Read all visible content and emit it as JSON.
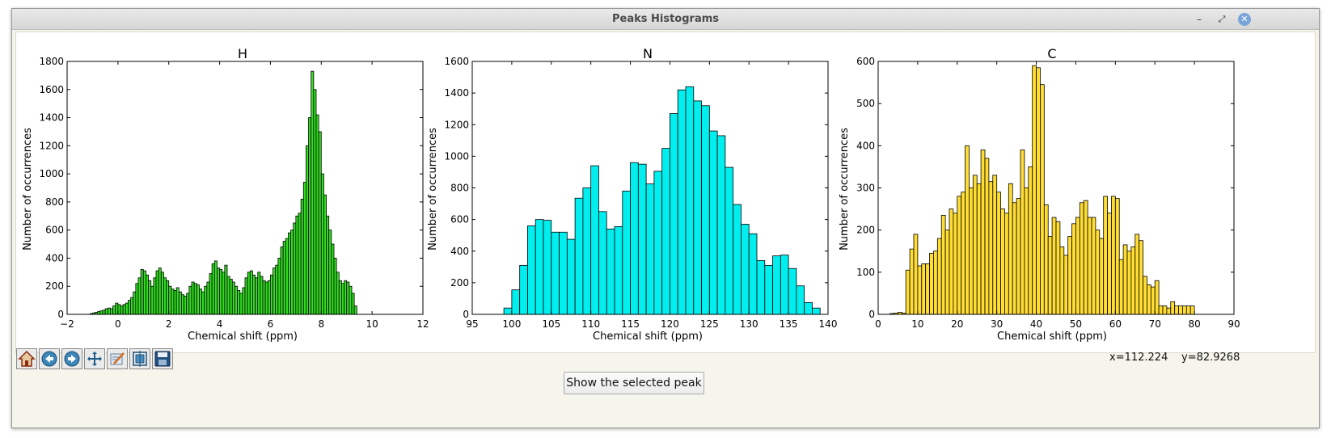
{
  "window": {
    "title": "Peaks Histograms"
  },
  "charts": [
    {
      "title": "H",
      "xlabel": "Chemical shift (ppm)",
      "ylabel": "Number of occurrences",
      "xlim": [
        -2,
        12
      ],
      "ylim": [
        0,
        1800
      ],
      "xticks": [
        -2,
        0,
        2,
        4,
        6,
        8,
        10,
        12
      ],
      "yticks": [
        0,
        200,
        400,
        600,
        800,
        1000,
        1200,
        1400,
        1600,
        1800
      ],
      "color": "#33dd22"
    },
    {
      "title": "N",
      "xlabel": "Chemical shift (ppm)",
      "ylabel": "Number of occurrences",
      "xlim": [
        95,
        140
      ],
      "ylim": [
        0,
        1600
      ],
      "xticks": [
        95,
        100,
        105,
        110,
        115,
        120,
        125,
        130,
        135,
        140
      ],
      "yticks": [
        0,
        200,
        400,
        600,
        800,
        1000,
        1200,
        1400,
        1600
      ],
      "color": "#00eeee"
    },
    {
      "title": "C",
      "xlabel": "Chemical shift (ppm)",
      "ylabel": "Number of occurrences",
      "xlim": [
        0,
        90
      ],
      "ylim": [
        0,
        600
      ],
      "xticks": [
        0,
        10,
        20,
        30,
        40,
        50,
        60,
        70,
        80,
        90
      ],
      "yticks": [
        0,
        100,
        200,
        300,
        400,
        500,
        600
      ],
      "color": "#ffdd33"
    }
  ],
  "chart_data": [
    {
      "type": "bar",
      "title": "H",
      "xlabel": "Chemical shift (ppm)",
      "ylabel": "Number of occurrences",
      "xlim": [
        -2,
        12
      ],
      "ylim": [
        0,
        1800
      ],
      "bin_start": -1.1,
      "bin_width": 0.1,
      "values": [
        5,
        10,
        15,
        20,
        25,
        30,
        40,
        45,
        40,
        60,
        80,
        70,
        60,
        70,
        80,
        100,
        120,
        160,
        220,
        260,
        320,
        310,
        280,
        240,
        200,
        260,
        310,
        330,
        300,
        260,
        240,
        200,
        180,
        170,
        190,
        160,
        140,
        130,
        150,
        200,
        230,
        220,
        210,
        180,
        160,
        200,
        230,
        290,
        360,
        380,
        330,
        320,
        300,
        350,
        270,
        250,
        230,
        200,
        170,
        150,
        190,
        260,
        300,
        310,
        280,
        260,
        300,
        270,
        240,
        230,
        240,
        280,
        330,
        350,
        400,
        480,
        520,
        540,
        580,
        600,
        650,
        700,
        720,
        820,
        940,
        1200,
        1400,
        1730,
        1600,
        1420,
        1300,
        1000,
        850,
        700,
        600,
        500,
        400,
        300,
        240,
        220,
        240,
        230,
        200,
        150,
        60
      ]
    },
    {
      "type": "bar",
      "title": "N",
      "xlabel": "Chemical shift (ppm)",
      "ylabel": "Number of occurrences",
      "xlim": [
        95,
        140
      ],
      "ylim": [
        0,
        1600
      ],
      "bin_start": 99,
      "bin_width": 1,
      "values": [
        40,
        155,
        310,
        560,
        600,
        595,
        520,
        520,
        475,
        735,
        800,
        940,
        650,
        540,
        555,
        780,
        960,
        950,
        825,
        905,
        1050,
        1270,
        1420,
        1440,
        1350,
        1320,
        1160,
        1130,
        930,
        695,
        570,
        510,
        340,
        310,
        370,
        375,
        290,
        180,
        75,
        40
      ]
    },
    {
      "type": "bar",
      "title": "C",
      "xlabel": "Chemical shift (ppm)",
      "ylabel": "Number of occurrences",
      "xlim": [
        0,
        90
      ],
      "ylim": [
        0,
        600
      ],
      "bin_start": 3,
      "bin_width": 1,
      "values": [
        2,
        3,
        5,
        3,
        105,
        155,
        190,
        115,
        120,
        120,
        145,
        150,
        180,
        235,
        200,
        250,
        240,
        280,
        290,
        400,
        300,
        330,
        310,
        390,
        370,
        315,
        330,
        290,
        250,
        240,
        310,
        265,
        275,
        390,
        300,
        350,
        590,
        585,
        545,
        260,
        185,
        230,
        220,
        160,
        140,
        185,
        215,
        230,
        265,
        270,
        230,
        230,
        200,
        180,
        280,
        240,
        280,
        275,
        130,
        165,
        150,
        160,
        190,
        175,
        90,
        70,
        65,
        80,
        20,
        20,
        15,
        30,
        20,
        20,
        20,
        20,
        20
      ]
    }
  ],
  "toolbar": {
    "buttons": [
      {
        "name": "home",
        "icon": "home-icon"
      },
      {
        "name": "back",
        "icon": "arrow-left-icon"
      },
      {
        "name": "forward",
        "icon": "arrow-right-icon"
      },
      {
        "name": "pan",
        "icon": "move-icon"
      },
      {
        "name": "zoom",
        "icon": "zoom-rect-icon"
      },
      {
        "name": "subplots",
        "icon": "subplots-icon"
      },
      {
        "name": "save",
        "icon": "save-icon"
      }
    ]
  },
  "status": {
    "x": "x=112.224",
    "y": "y=82.9268"
  },
  "show_button": {
    "label": "Show the selected peak"
  }
}
